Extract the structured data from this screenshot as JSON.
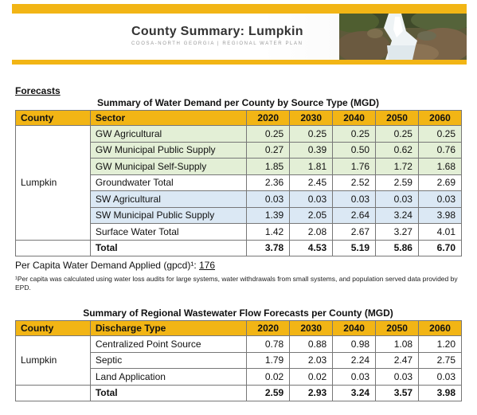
{
  "banner": {
    "title": "County  Summary:  Lumpkin",
    "subtitle": "COOSA-NORTH GEORGIA | REGIONAL WATER PLAN"
  },
  "section_heading": "Forecasts",
  "demand": {
    "title": "Summary of Water Demand per County by Source Type (MGD)",
    "headers": [
      "County",
      "Sector",
      "2020",
      "2030",
      "2040",
      "2050",
      "2060"
    ],
    "county": "Lumpkin",
    "rows": [
      {
        "sector": "GW Agricultural",
        "values": [
          "0.25",
          "0.25",
          "0.25",
          "0.25",
          "0.25"
        ]
      },
      {
        "sector": "GW Municipal Public Supply",
        "values": [
          "0.27",
          "0.39",
          "0.50",
          "0.62",
          "0.76"
        ]
      },
      {
        "sector": "GW Municipal Self-Supply",
        "values": [
          "1.85",
          "1.81",
          "1.76",
          "1.72",
          "1.68"
        ]
      },
      {
        "sector": "Groundwater Total",
        "values": [
          "2.36",
          "2.45",
          "2.52",
          "2.59",
          "2.69"
        ]
      },
      {
        "sector": "SW Agricultural",
        "values": [
          "0.03",
          "0.03",
          "0.03",
          "0.03",
          "0.03"
        ]
      },
      {
        "sector": "SW Municipal Public Supply",
        "values": [
          "1.39",
          "2.05",
          "2.64",
          "3.24",
          "3.98"
        ]
      },
      {
        "sector": "Surface Water Total",
        "values": [
          "1.42",
          "2.08",
          "2.67",
          "3.27",
          "4.01"
        ]
      }
    ],
    "total_label": "Total",
    "total_values": [
      "3.78",
      "4.53",
      "5.19",
      "5.86",
      "6.70"
    ]
  },
  "per_capita": {
    "label": "Per Capita Water Demand Applied (gpcd)¹: ",
    "value": "176",
    "footnote": "¹Per capita was calculated using water loss audits for large systems, water withdrawals from small systems, and population served data provided by EPD."
  },
  "wastewater": {
    "title": "Summary of Regional Wastewater Flow Forecasts per County (MGD)",
    "headers": [
      "County",
      "Discharge Type",
      "2020",
      "2030",
      "2040",
      "2050",
      "2060"
    ],
    "county": "Lumpkin",
    "rows": [
      {
        "type": "Centralized Point Source",
        "values": [
          "0.78",
          "0.88",
          "0.98",
          "1.08",
          "1.20"
        ]
      },
      {
        "type": "Septic",
        "values": [
          "1.79",
          "2.03",
          "2.24",
          "2.47",
          "2.75"
        ]
      },
      {
        "type": "Land Application",
        "values": [
          "0.02",
          "0.02",
          "0.03",
          "0.03",
          "0.03"
        ]
      }
    ],
    "total_label": "Total",
    "total_values": [
      "2.59",
      "2.93",
      "3.24",
      "3.57",
      "3.98"
    ]
  }
}
